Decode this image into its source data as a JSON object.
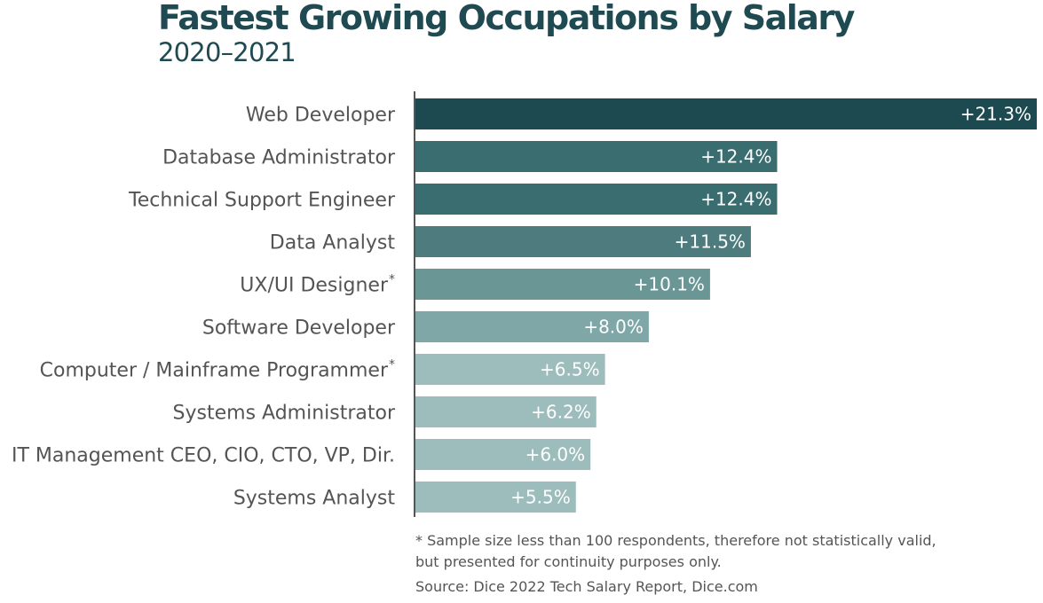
{
  "chart_data": {
    "type": "bar",
    "orientation": "horizontal",
    "title": "Fastest Growing Occupations by Salary",
    "subtitle": "2020–2021",
    "categories": [
      "Web Developer",
      "Database Administrator",
      "Technical Support Engineer",
      "Data Analyst",
      "UX/UI Designer",
      "Software Developer",
      "Computer / Mainframe Programmer",
      "Systems Administrator",
      "IT Management CEO, CIO, CTO, VP, Dir.",
      "Systems Analyst"
    ],
    "asterisk": [
      false,
      false,
      false,
      false,
      true,
      false,
      true,
      false,
      false,
      false
    ],
    "values": [
      21.3,
      12.4,
      12.4,
      11.5,
      10.1,
      8.0,
      6.5,
      6.2,
      6.0,
      5.5
    ],
    "value_labels": [
      "+21.3%",
      "+12.4%",
      "+12.4%",
      "+11.5%",
      "+10.1%",
      "+8.0%",
      "+6.5%",
      "+6.2%",
      "+6.0%",
      "+5.5%"
    ],
    "bar_colors": [
      "#1d4a50",
      "#3a6d70",
      "#3a6d70",
      "#4e7c7e",
      "#6a9696",
      "#7fa7a7",
      "#9dbdbd",
      "#9dbdbd",
      "#9dbdbd",
      "#9dbdbd"
    ],
    "xlim": [
      0,
      21.3
    ],
    "grid": false,
    "legend": "none"
  },
  "footnote": {
    "line1": "* Sample size less than 100 respondents, therefore not statistically valid,",
    "line2": "but presented for continuity purposes only.",
    "source": "Source: Dice 2022 Tech Salary Report, Dice.com"
  }
}
